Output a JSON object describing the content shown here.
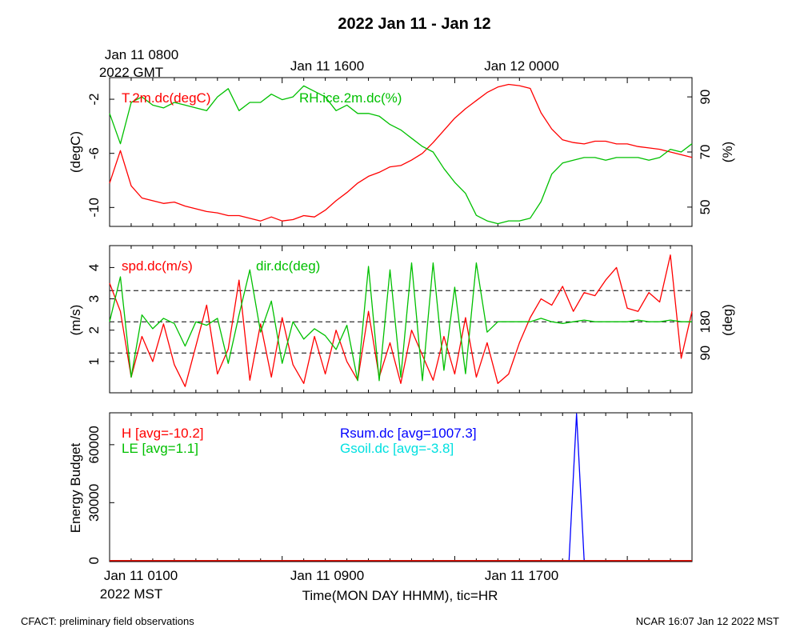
{
  "title": "2022 Jan 11 - Jan 12",
  "top_time_labels": {
    "start_line1": "Jan 11 0800",
    "start_line2": "2022 GMT",
    "mid": "Jan 11 1600",
    "end": "Jan 12 0000"
  },
  "bottom_time_labels": {
    "start_line1": "Jan 11 0100",
    "start_line2": "2022 MST",
    "mid": "Jan 11 0900",
    "end": "Jan 11 1700",
    "axis_title": "Time(MON DAY HHMM), tic=HR"
  },
  "footer": {
    "left": "CFACT: preliminary field observations",
    "right": "NCAR 16:07 Jan 12 2022 MST"
  },
  "colors": {
    "red": "#ff0000",
    "green": "#00c000",
    "blue": "#0000ff",
    "cyan": "#00e0e0"
  },
  "chart_data": [
    {
      "type": "line",
      "panel": "temperature-humidity",
      "x_unit": "hours since Jan 11 0100 MST",
      "xlim": [
        0,
        27
      ],
      "left_axis": {
        "label": "(degC)",
        "ticks": [
          "-2",
          "-6",
          "-10"
        ],
        "tick_values": [
          -2,
          -6,
          -10
        ],
        "ylim": [
          -11.4,
          -0.4
        ]
      },
      "right_axis": {
        "label": "(%)",
        "ticks": [
          "90",
          "70",
          "50"
        ],
        "tick_values": [
          90,
          70,
          50
        ],
        "ylim": [
          43,
          97
        ]
      },
      "series": [
        {
          "name": "T.2m.dc(degC)",
          "axis": "left",
          "color": "#ff0000",
          "x": [
            0,
            0.5,
            1,
            1.5,
            2,
            2.5,
            3,
            3.5,
            4,
            4.5,
            5,
            5.5,
            6,
            6.5,
            7,
            7.5,
            8,
            8.5,
            9,
            9.5,
            10,
            10.5,
            11,
            11.5,
            12,
            12.5,
            13,
            13.5,
            14,
            14.5,
            15,
            15.5,
            16,
            16.5,
            17,
            17.5,
            18,
            18.5,
            19,
            19.5,
            20,
            20.5,
            21,
            21.5,
            22,
            22.5,
            23,
            23.5,
            24,
            24.5,
            25,
            25.5,
            26,
            26.5,
            27
          ],
          "values": [
            -8.2,
            -5.8,
            -8.4,
            -9.3,
            -9.5,
            -9.7,
            -9.6,
            -9.9,
            -10.1,
            -10.3,
            -10.4,
            -10.6,
            -10.6,
            -10.8,
            -11.0,
            -10.7,
            -11.0,
            -10.9,
            -10.6,
            -10.7,
            -10.2,
            -9.5,
            -8.9,
            -8.2,
            -7.7,
            -7.4,
            -7.0,
            -6.9,
            -6.5,
            -6.0,
            -5.2,
            -4.3,
            -3.4,
            -2.7,
            -2.1,
            -1.5,
            -1.1,
            -0.9,
            -1.0,
            -1.2,
            -3.0,
            -4.2,
            -5.0,
            -5.2,
            -5.3,
            -5.1,
            -5.1,
            -5.3,
            -5.3,
            -5.5,
            -5.6,
            -5.7,
            -5.9,
            -6.1,
            -6.3
          ]
        },
        {
          "name": "RH.ice.2m.dc(%)",
          "axis": "right",
          "color": "#00c000",
          "x": [
            0,
            0.5,
            1,
            1.5,
            2,
            2.5,
            3,
            3.5,
            4,
            4.5,
            5,
            5.5,
            6,
            6.5,
            7,
            7.5,
            8,
            8.5,
            9,
            9.5,
            10,
            10.5,
            11,
            11.5,
            12,
            12.5,
            13,
            13.5,
            14,
            14.5,
            15,
            15.5,
            16,
            16.5,
            17,
            17.5,
            18,
            18.5,
            19,
            19.5,
            20,
            20.5,
            21,
            21.5,
            22,
            22.5,
            23,
            23.5,
            24,
            24.5,
            25,
            25.5,
            26,
            26.5,
            27
          ],
          "values": [
            84,
            73,
            88,
            90,
            87,
            86,
            88,
            87,
            86,
            85,
            90,
            93,
            85,
            88,
            88,
            91,
            89,
            90,
            94,
            92,
            90,
            85,
            87,
            84,
            84,
            83,
            80,
            78,
            75,
            72,
            70,
            64,
            59,
            55,
            47,
            45,
            44,
            45,
            45,
            46,
            52,
            62,
            66,
            67,
            68,
            68,
            67,
            68,
            68,
            68,
            67,
            68,
            71,
            70,
            73
          ]
        }
      ]
    },
    {
      "type": "line",
      "panel": "wind",
      "x_unit": "hours since Jan 11 0100 MST",
      "xlim": [
        0,
        27
      ],
      "left_axis": {
        "label": "(m/s)",
        "ticks": [
          "1",
          "2",
          "3",
          "4"
        ],
        "tick_values": [
          1,
          2,
          3,
          4
        ],
        "ylim": [
          0,
          4.7
        ]
      },
      "right_axis": {
        "label": "(deg)",
        "ticks": [
          "90",
          "180"
        ],
        "tick_values": [
          90,
          180
        ],
        "ylim": [
          -25,
          400
        ]
      },
      "reference_lines_deg": [
        90,
        180,
        270
      ],
      "series": [
        {
          "name": "spd.dc(m/s)",
          "axis": "left",
          "color": "#ff0000",
          "x": [
            0,
            0.5,
            1,
            1.5,
            2,
            2.5,
            3,
            3.5,
            4,
            4.5,
            5,
            5.5,
            6,
            6.5,
            7,
            7.5,
            8,
            8.5,
            9,
            9.5,
            10,
            10.5,
            11,
            11.5,
            12,
            12.5,
            13,
            13.5,
            14,
            14.5,
            15,
            15.5,
            16,
            16.5,
            17,
            17.5,
            18,
            18.5,
            19,
            19.5,
            20,
            20.5,
            21,
            21.5,
            22,
            22.5,
            23,
            23.5,
            24,
            24.5,
            25,
            25.5,
            26,
            26.5,
            27
          ],
          "values": [
            3.5,
            2.6,
            0.5,
            1.8,
            1.0,
            2.2,
            0.9,
            0.2,
            1.5,
            2.8,
            0.6,
            1.4,
            3.6,
            0.4,
            2.2,
            0.5,
            2.4,
            0.9,
            0.3,
            1.8,
            0.6,
            2.0,
            1.0,
            0.4,
            2.6,
            0.5,
            1.6,
            0.3,
            2.0,
            1.2,
            0.4,
            1.8,
            0.6,
            2.4,
            0.5,
            1.6,
            0.3,
            0.6,
            1.6,
            2.4,
            3.0,
            2.8,
            3.4,
            2.6,
            3.2,
            3.1,
            3.6,
            4.0,
            2.7,
            2.6,
            3.2,
            2.9,
            4.4,
            1.1,
            2.6
          ]
        },
        {
          "name": "dir.dc(deg)",
          "axis": "right",
          "color": "#00c000",
          "x": [
            0,
            0.5,
            1,
            1.5,
            2,
            2.5,
            3,
            3.5,
            4,
            4.5,
            5,
            5.5,
            6,
            6.5,
            7,
            7.5,
            8,
            8.5,
            9,
            9.5,
            10,
            10.5,
            11,
            11.5,
            12,
            12.5,
            13,
            13.5,
            14,
            14.5,
            15,
            15.5,
            16,
            16.5,
            17,
            17.5,
            18,
            18.5,
            19,
            19.5,
            20,
            20.5,
            21,
            21.5,
            22,
            22.5,
            23,
            23.5,
            24,
            24.5,
            25,
            25.5,
            26,
            26.5,
            27
          ],
          "values": [
            180,
            310,
            20,
            200,
            160,
            190,
            175,
            110,
            180,
            170,
            190,
            60,
            200,
            330,
            150,
            240,
            60,
            180,
            130,
            160,
            140,
            100,
            170,
            10,
            340,
            10,
            330,
            20,
            350,
            10,
            350,
            40,
            280,
            30,
            350,
            150,
            180,
            180,
            180,
            180,
            190,
            180,
            175,
            180,
            185,
            180,
            180,
            180,
            180,
            185,
            180,
            180,
            185,
            180,
            180
          ]
        }
      ]
    },
    {
      "type": "line",
      "panel": "energy-budget",
      "x_unit": "hours since Jan 11 0100 MST",
      "xlim": [
        0,
        27
      ],
      "left_axis": {
        "label": "Energy Budget",
        "ticks": [
          "0",
          "30000",
          "60000"
        ],
        "tick_values": [
          0,
          30000,
          60000
        ],
        "ylim": [
          -500,
          76500
        ]
      },
      "series": [
        {
          "name": "H [avg=-10.2]",
          "color": "#ff0000",
          "x": [
            0,
            27
          ],
          "values": [
            0,
            0
          ]
        },
        {
          "name": "LE [avg=1.1]",
          "color": "#00c000",
          "x": [
            0,
            27
          ],
          "values": [
            0,
            0
          ]
        },
        {
          "name": "Rsum.dc [avg=1007.3]",
          "color": "#0000ff",
          "x": [
            0,
            21.3,
            21.65,
            22.0,
            27
          ],
          "values": [
            0,
            0,
            76000,
            0,
            0
          ]
        },
        {
          "name": "Gsoil.dc [avg=-3.8]",
          "color": "#00e0e0",
          "x": [
            0,
            27
          ],
          "values": [
            0,
            0
          ]
        }
      ]
    }
  ]
}
